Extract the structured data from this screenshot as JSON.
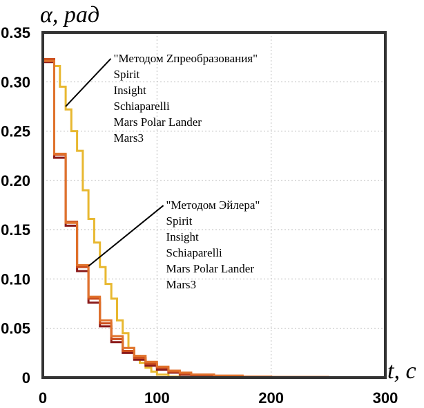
{
  "chart_data": {
    "type": "line",
    "title": "",
    "xlabel": "t, c",
    "ylabel": "α, рад",
    "xlim": [
      0,
      300
    ],
    "ylim": [
      0,
      0.35
    ],
    "xticks": [
      "0",
      "100",
      "200",
      "300"
    ],
    "yticks": [
      "0",
      "0.05",
      "0.10",
      "0.15",
      "0.20",
      "0.25",
      "0.30",
      "0.35"
    ],
    "grid": true,
    "step": true,
    "series": [
      {
        "color": "#e8b830",
        "x": [
          0,
          10,
          15,
          20,
          25,
          30,
          35,
          40,
          45,
          50,
          55,
          60,
          65,
          70,
          75,
          80,
          85,
          90,
          95,
          100,
          110,
          120,
          130,
          150,
          300
        ],
        "y": [
          0.322,
          0.316,
          0.295,
          0.272,
          0.25,
          0.23,
          0.19,
          0.161,
          0.137,
          0.112,
          0.095,
          0.08,
          0.058,
          0.045,
          0.03,
          0.022,
          0.015,
          0.01,
          0.006,
          0.003,
          0.001,
          0.0005,
          0.0002,
          0.0001,
          0
        ]
      },
      {
        "color": "#8b1a1a",
        "x": [
          0,
          10,
          20,
          30,
          40,
          50,
          60,
          70,
          80,
          90,
          100,
          110,
          120,
          130,
          150,
          175,
          200,
          250,
          300
        ],
        "y": [
          0.32,
          0.223,
          0.154,
          0.108,
          0.076,
          0.052,
          0.036,
          0.025,
          0.018,
          0.012,
          0.008,
          0.005,
          0.003,
          0.002,
          0.001,
          0.0005,
          0.0003,
          0.0001,
          0
        ]
      },
      {
        "color": "#cc4d1c",
        "x": [
          0,
          10,
          20,
          30,
          40,
          50,
          60,
          70,
          80,
          90,
          100,
          110,
          120,
          130,
          150,
          175,
          200,
          250,
          300
        ],
        "y": [
          0.323,
          0.226,
          0.158,
          0.112,
          0.08,
          0.055,
          0.039,
          0.027,
          0.02,
          0.014,
          0.01,
          0.006,
          0.004,
          0.003,
          0.0015,
          0.0008,
          0.0005,
          0.0002,
          0
        ]
      },
      {
        "color": "#e0722c",
        "x": [
          0,
          10,
          20,
          30,
          40,
          50,
          60,
          70,
          80,
          90,
          100,
          110,
          120,
          130,
          150,
          175,
          200,
          250,
          300
        ],
        "y": [
          0.321,
          0.227,
          0.157,
          0.114,
          0.082,
          0.058,
          0.042,
          0.03,
          0.022,
          0.016,
          0.011,
          0.007,
          0.005,
          0.003,
          0.002,
          0.001,
          0.0006,
          0.0003,
          0
        ]
      }
    ],
    "annotations": [
      {
        "lines": [
          "\"Методом Zпреобразования\"",
          "Spirit",
          "Insight",
          "Schiaparelli",
          "Mars Polar Lander",
          "Mars3"
        ],
        "points_to": [
          20,
          0.275
        ],
        "text_at": [
          62,
          0.32
        ]
      },
      {
        "lines": [
          "\"Методом Эйлера\"",
          "Spirit",
          "Insight",
          "Schiaparelli",
          "Mars Polar Lander",
          "Mars3"
        ],
        "points_to": [
          40,
          0.113
        ],
        "text_at": [
          108,
          0.171
        ]
      }
    ]
  }
}
